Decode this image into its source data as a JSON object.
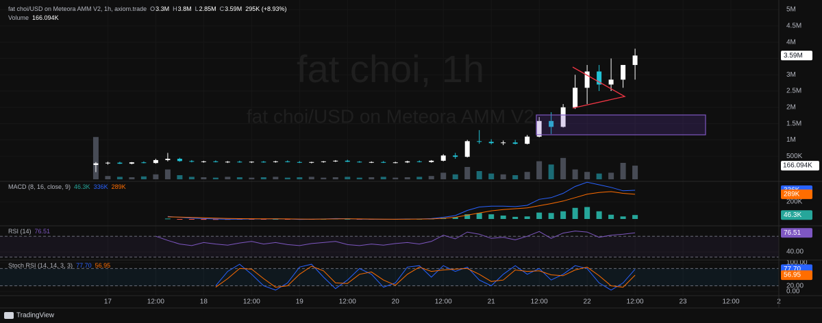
{
  "chart_data": [
    {
      "type": "candlestick",
      "title": "fat choi/USD on Meteora AMM V2, 1h, axiom.trade",
      "watermark": [
        "fat choi, 1h",
        "fat choi/USD on Meteora AMM V2"
      ],
      "ohlc_legend": [
        {
          "key": "O",
          "value": 3300000,
          "label": "3.3M"
        },
        {
          "key": "H",
          "value": 3800000,
          "label": "3.8M"
        },
        {
          "key": "L",
          "value": 2850000,
          "label": "2.85M"
        },
        {
          "key": "C",
          "value": 3590000,
          "label": "3.59M"
        }
      ],
      "change_label": "295K (+8.93%)",
      "last_price": {
        "value": 3590000,
        "label": "3.59M"
      },
      "up_color": "#ffffff",
      "down_color": "#22c3d6",
      "x": [
        -3,
        0,
        3,
        6,
        9,
        12,
        15,
        18,
        21,
        24,
        27,
        30,
        33,
        36,
        39,
        42,
        45,
        48,
        51,
        54,
        57,
        60,
        63,
        66,
        69,
        72,
        75,
        78,
        81,
        84,
        87,
        90,
        93,
        96,
        99,
        102,
        105,
        108,
        111,
        114,
        117,
        120,
        123,
        126,
        129,
        132
      ],
      "open": [
        230000,
        280000,
        300000,
        270000,
        310000,
        290000,
        380000,
        420000,
        350000,
        330000,
        340000,
        320000,
        330000,
        310000,
        330000,
        320000,
        340000,
        320000,
        300000,
        320000,
        340000,
        360000,
        330000,
        310000,
        320000,
        300000,
        310000,
        340000,
        320000,
        360000,
        520000,
        480000,
        960000,
        940000,
        900000,
        920000,
        880000,
        1100000,
        1580000,
        1400000,
        2000000,
        2600000,
        3100000,
        2700000,
        2850000,
        3300000
      ],
      "high": [
        320000,
        330000,
        330000,
        320000,
        340000,
        420000,
        600000,
        450000,
        380000,
        360000,
        370000,
        350000,
        360000,
        340000,
        350000,
        360000,
        370000,
        350000,
        330000,
        350000,
        380000,
        390000,
        350000,
        340000,
        350000,
        330000,
        360000,
        370000,
        380000,
        560000,
        600000,
        1000000,
        1300000,
        1020000,
        980000,
        1000000,
        1150000,
        1700000,
        1850000,
        2100000,
        3000000,
        3300000,
        3300000,
        3500000,
        3300000,
        3800000
      ],
      "low": [
        10000,
        240000,
        260000,
        250000,
        280000,
        270000,
        340000,
        330000,
        310000,
        300000,
        310000,
        290000,
        300000,
        290000,
        300000,
        300000,
        310000,
        290000,
        280000,
        300000,
        320000,
        320000,
        300000,
        290000,
        290000,
        280000,
        290000,
        310000,
        300000,
        340000,
        420000,
        460000,
        880000,
        860000,
        840000,
        860000,
        860000,
        1080000,
        1180000,
        1380000,
        1950000,
        2100000,
        2500000,
        2500000,
        2600000,
        2850000
      ],
      "close": [
        280000,
        300000,
        270000,
        310000,
        290000,
        380000,
        420000,
        350000,
        330000,
        340000,
        320000,
        330000,
        310000,
        330000,
        320000,
        340000,
        320000,
        300000,
        320000,
        340000,
        360000,
        330000,
        310000,
        320000,
        300000,
        310000,
        340000,
        320000,
        360000,
        520000,
        480000,
        960000,
        940000,
        900000,
        920000,
        880000,
        1100000,
        1580000,
        1400000,
        2000000,
        2600000,
        3100000,
        2700000,
        2850000,
        3300000,
        3590000
      ],
      "xlim": [
        -27,
        168
      ],
      "xticks": [
        {
          "value": 0,
          "label": "17"
        },
        {
          "value": 12,
          "label": "12:00"
        },
        {
          "value": 24,
          "label": "18"
        },
        {
          "value": 36,
          "label": "12:00"
        },
        {
          "value": 48,
          "label": "19"
        },
        {
          "value": 60,
          "label": "12:00"
        },
        {
          "value": 72,
          "label": "20"
        },
        {
          "value": 84,
          "label": "12:00"
        },
        {
          "value": 96,
          "label": "21"
        },
        {
          "value": 108,
          "label": "12:00"
        },
        {
          "value": 120,
          "label": "22"
        },
        {
          "value": 132,
          "label": "12:00"
        },
        {
          "value": 144,
          "label": "23"
        },
        {
          "value": 156,
          "label": "12:00"
        },
        {
          "value": 168,
          "label": "2"
        }
      ],
      "ylim": [
        -210000,
        5190000
      ],
      "yticks": [
        {
          "value": 500000,
          "label": "500K"
        },
        {
          "value": 1000000,
          "label": "1M"
        },
        {
          "value": 1500000,
          "label": "1.5M"
        },
        {
          "value": 2000000,
          "label": "2M"
        },
        {
          "value": 2500000,
          "label": "2.5M"
        },
        {
          "value": 3000000,
          "label": "3M"
        },
        {
          "value": 3500000,
          "label": "3.5M"
        },
        {
          "value": 4000000,
          "label": "4M"
        },
        {
          "value": 4500000,
          "label": "4.5M"
        },
        {
          "value": 5000000,
          "label": "5M"
        }
      ],
      "volume": {
        "name": "Volume",
        "last": {
          "value": 166094,
          "label": "166.094K"
        },
        "ylim": [
          0,
          1000000
        ],
        "up_color": "#474b55",
        "down_color": "#1b6b75",
        "values": [
          515000,
          40000,
          30000,
          25000,
          35000,
          60000,
          120000,
          50000,
          30000,
          25000,
          20000,
          30000,
          25000,
          20000,
          25000,
          30000,
          20000,
          25000,
          30000,
          20000,
          25000,
          30000,
          20000,
          25000,
          30000,
          20000,
          25000,
          30000,
          40000,
          80000,
          60000,
          150000,
          100000,
          70000,
          60000,
          50000,
          90000,
          220000,
          180000,
          260000,
          120000,
          90000,
          70000,
          80000,
          200000,
          166094
        ]
      }
    },
    {
      "type": "macd",
      "title": "MACD (8, 16, close, 9)",
      "ylim": [
        -64000,
        416000
      ],
      "yticks": [
        {
          "value": 200000,
          "label": "200K"
        }
      ],
      "histogram": {
        "last": {
          "value": 46300,
          "label": "46.3K"
        },
        "up_color": "#26a69a",
        "down_color": "#ef5350",
        "values": [
          null,
          null,
          null,
          null,
          null,
          null,
          5000,
          -2000,
          -8000,
          -9000,
          -10000,
          -9000,
          -6000,
          -3000,
          -2000,
          0,
          -1000,
          -4000,
          -1000,
          1000,
          4000,
          1000,
          -3000,
          -2000,
          -2000,
          0,
          2000,
          1000,
          4000,
          12000,
          20000,
          55000,
          70000,
          55000,
          40000,
          25000,
          30000,
          75000,
          70000,
          90000,
          130000,
          140000,
          90000,
          50000,
          30000,
          46300
        ]
      },
      "macd": {
        "color": "#2962ff",
        "last": {
          "value": 336000,
          "label": "336K"
        },
        "values": [
          null,
          null,
          null,
          null,
          null,
          null,
          30000,
          20000,
          10000,
          5000,
          0,
          -3000,
          -2000,
          0,
          0,
          2000,
          0,
          -5000,
          -3000,
          0,
          5000,
          3000,
          -2000,
          -3000,
          -4000,
          -3000,
          0,
          0,
          5000,
          20000,
          40000,
          100000,
          140000,
          150000,
          150000,
          145000,
          160000,
          230000,
          250000,
          300000,
          380000,
          430000,
          400000,
          370000,
          330000,
          336000
        ]
      },
      "signal": {
        "color": "#ff6d00",
        "last": {
          "value": 289000,
          "label": "289K"
        },
        "values": [
          null,
          null,
          null,
          null,
          null,
          null,
          25000,
          22000,
          18000,
          14000,
          10000,
          6000,
          4000,
          3000,
          2000,
          2000,
          1000,
          -1000,
          -2000,
          -1000,
          1000,
          2000,
          1000,
          -1000,
          -2000,
          -3000,
          -2000,
          -1000,
          1000,
          8000,
          20000,
          45000,
          70000,
          95000,
          110000,
          120000,
          130000,
          155000,
          180000,
          210000,
          250000,
          290000,
          310000,
          320000,
          300000,
          289000
        ]
      }
    },
    {
      "type": "rsi",
      "title": "RSI (14)",
      "ylim": [
        27,
        86
      ],
      "yticks": [
        {
          "value": 40,
          "label": "40.00"
        }
      ],
      "bands": [
        70,
        30
      ],
      "color": "#7e57c2",
      "last": {
        "value": 76.51,
        "label": "76.51"
      },
      "values": [
        null,
        null,
        null,
        null,
        null,
        70,
        62,
        55,
        52,
        58,
        55,
        53,
        57,
        60,
        55,
        58,
        54,
        52,
        56,
        58,
        60,
        54,
        52,
        55,
        53,
        56,
        58,
        55,
        60,
        72,
        65,
        78,
        74,
        66,
        68,
        63,
        70,
        79,
        66,
        76,
        80,
        78,
        68,
        72,
        74,
        76.51
      ]
    },
    {
      "type": "stoch",
      "title": "Stoch RSI (14, 14, 3, 3)",
      "ylim": [
        -9.5,
        102.4
      ],
      "yticks": [
        {
          "value": 0,
          "label": "0.00"
        },
        {
          "value": 20,
          "label": "20.00"
        },
        {
          "value": 100,
          "label": "100.00"
        }
      ],
      "bands": [
        80,
        20
      ],
      "k": {
        "color": "#2962ff",
        "last": {
          "value": 77.7,
          "label": "77.70"
        },
        "values": [
          null,
          null,
          null,
          null,
          null,
          null,
          null,
          null,
          null,
          null,
          20,
          70,
          95,
          60,
          20,
          5,
          30,
          85,
          95,
          50,
          10,
          40,
          80,
          60,
          15,
          30,
          85,
          90,
          50,
          90,
          70,
          85,
          40,
          20,
          60,
          90,
          60,
          80,
          40,
          60,
          90,
          80,
          30,
          5,
          30,
          77.7
        ]
      },
      "d": {
        "color": "#ff6d00",
        "last": {
          "value": 56.95,
          "label": "56.95"
        },
        "values": [
          null,
          null,
          null,
          null,
          null,
          null,
          null,
          null,
          null,
          null,
          15,
          45,
          80,
          78,
          45,
          15,
          20,
          60,
          88,
          72,
          30,
          28,
          60,
          68,
          40,
          22,
          60,
          85,
          70,
          75,
          78,
          80,
          60,
          35,
          40,
          75,
          70,
          72,
          58,
          55,
          75,
          85,
          55,
          20,
          15,
          56.95
        ]
      }
    }
  ],
  "footer": "TradingView"
}
